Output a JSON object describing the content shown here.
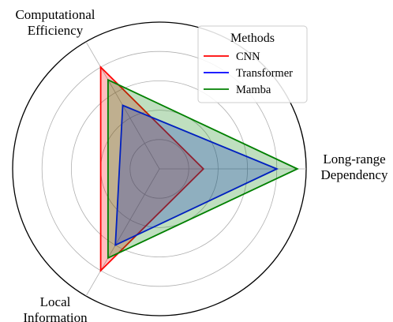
{
  "chart_data": {
    "type": "radar",
    "axes": [
      {
        "key": "long_range",
        "lines": [
          "Long-range",
          "Dependency"
        ]
      },
      {
        "key": "computational",
        "lines": [
          "Computational",
          "Efficiency"
        ]
      },
      {
        "key": "local",
        "lines": [
          "Local",
          "Information"
        ]
      }
    ],
    "rmax": 5,
    "rings": [
      1,
      2,
      3,
      4,
      5
    ],
    "grid": true,
    "legend": {
      "title": "Methods",
      "placement": "top-right"
    },
    "series": [
      {
        "name": "CNN",
        "color": "#ff0000",
        "values": [
          1.5,
          4.0,
          4.0
        ]
      },
      {
        "name": "Transformer",
        "color": "#0000ff",
        "values": [
          4.0,
          2.5,
          3.0
        ]
      },
      {
        "name": "Mamba",
        "color": "#008000",
        "values": [
          4.7,
          3.5,
          3.5
        ]
      }
    ]
  }
}
